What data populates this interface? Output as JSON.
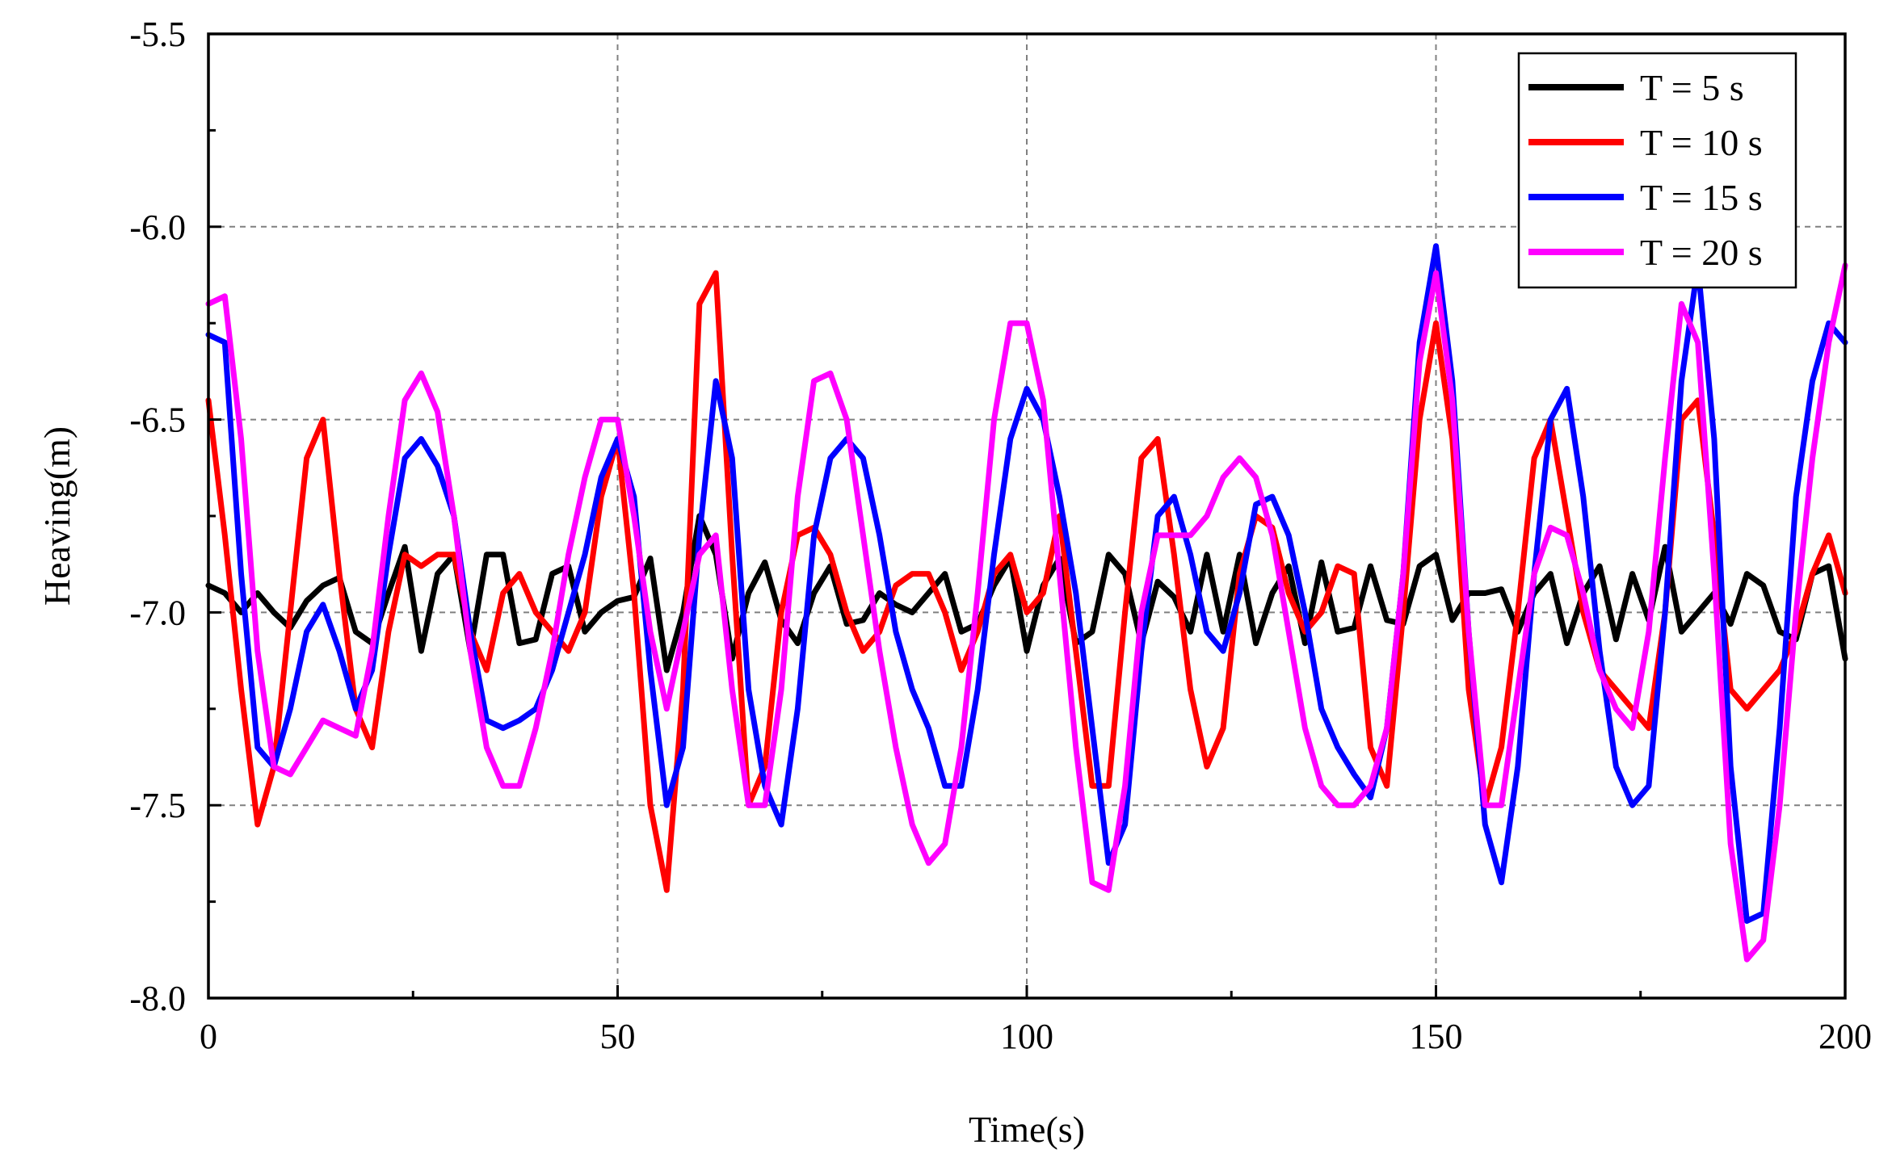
{
  "chart_data": {
    "type": "line",
    "title": "",
    "xlabel": "Time(s)",
    "ylabel": "Heaving(m)",
    "xlim": [
      0,
      200
    ],
    "ylim": [
      -8.0,
      -5.5
    ],
    "xticks": [
      0,
      50,
      100,
      150,
      200
    ],
    "xtick_labels": [
      "0",
      "50",
      "100",
      "150",
      "200"
    ],
    "yticks": [
      -8.0,
      -7.5,
      -7.0,
      -6.5,
      -6.0,
      -5.5
    ],
    "ytick_labels": [
      "-8.0",
      "-7.5",
      "-7.0",
      "-6.5",
      "-6.0",
      "-5.5"
    ],
    "grid": true,
    "legend_position": "top-right",
    "series": [
      {
        "name": "T = 5 s",
        "color": "#000000",
        "x": [
          0,
          2,
          4,
          6,
          8,
          10,
          12,
          14,
          16,
          18,
          20,
          22,
          24,
          26,
          28,
          30,
          32,
          34,
          36,
          38,
          40,
          42,
          44,
          46,
          48,
          50,
          52,
          54,
          56,
          58,
          60,
          62,
          64,
          66,
          68,
          70,
          72,
          74,
          76,
          78,
          80,
          82,
          84,
          86,
          88,
          90,
          92,
          94,
          96,
          98,
          100,
          102,
          104,
          106,
          108,
          110,
          112,
          114,
          116,
          118,
          120,
          122,
          124,
          126,
          128,
          130,
          132,
          134,
          136,
          138,
          140,
          142,
          144,
          146,
          148,
          150,
          152,
          154,
          156,
          158,
          160,
          162,
          164,
          166,
          168,
          170,
          172,
          174,
          176,
          178,
          180,
          182,
          184,
          186,
          188,
          190,
          192,
          194,
          196,
          198,
          200
        ],
        "y": [
          -6.93,
          -6.95,
          -7.0,
          -6.95,
          -7.0,
          -7.04,
          -6.97,
          -6.93,
          -6.91,
          -7.05,
          -7.08,
          -6.95,
          -6.83,
          -7.1,
          -6.9,
          -6.85,
          -7.1,
          -6.85,
          -6.85,
          -7.08,
          -7.07,
          -6.9,
          -6.88,
          -7.05,
          -7.0,
          -6.97,
          -6.96,
          -6.86,
          -7.15,
          -7.0,
          -6.75,
          -6.85,
          -7.12,
          -6.95,
          -6.87,
          -7.02,
          -7.08,
          -6.95,
          -6.88,
          -7.03,
          -7.02,
          -6.95,
          -6.98,
          -7.0,
          -6.95,
          -6.9,
          -7.05,
          -7.03,
          -6.93,
          -6.86,
          -7.1,
          -6.93,
          -6.86,
          -7.08,
          -7.05,
          -6.85,
          -6.9,
          -7.08,
          -6.92,
          -6.96,
          -7.05,
          -6.85,
          -7.05,
          -6.85,
          -7.08,
          -6.95,
          -6.88,
          -7.08,
          -6.87,
          -7.05,
          -7.04,
          -6.88,
          -7.02,
          -7.03,
          -6.88,
          -6.85,
          -7.02,
          -6.95,
          -6.95,
          -6.94,
          -7.05,
          -6.95,
          -6.9,
          -7.08,
          -6.95,
          -6.88,
          -7.07,
          -6.9,
          -7.02,
          -6.83,
          -7.05,
          -7.0,
          -6.95,
          -7.03,
          -6.9,
          -6.93,
          -7.05,
          -7.07,
          -6.9,
          -6.88,
          -7.12
        ]
      },
      {
        "name": "T = 10 s",
        "color": "#ff0000",
        "x": [
          0,
          2,
          4,
          6,
          8,
          10,
          12,
          14,
          16,
          18,
          20,
          22,
          24,
          26,
          28,
          30,
          32,
          34,
          36,
          38,
          40,
          42,
          44,
          46,
          48,
          50,
          52,
          54,
          56,
          58,
          60,
          62,
          64,
          66,
          68,
          70,
          72,
          74,
          76,
          78,
          80,
          82,
          84,
          86,
          88,
          90,
          92,
          94,
          96,
          98,
          100,
          102,
          104,
          106,
          108,
          110,
          112,
          114,
          116,
          118,
          120,
          122,
          124,
          126,
          128,
          130,
          132,
          134,
          136,
          138,
          140,
          142,
          144,
          146,
          148,
          150,
          152,
          154,
          156,
          158,
          160,
          162,
          164,
          166,
          168,
          170,
          172,
          174,
          176,
          178,
          180,
          182,
          184,
          186,
          188,
          190,
          192,
          194,
          196,
          198,
          200
        ],
        "y": [
          -6.45,
          -6.8,
          -7.2,
          -7.55,
          -7.4,
          -7.0,
          -6.6,
          -6.5,
          -6.9,
          -7.25,
          -7.35,
          -7.05,
          -6.85,
          -6.88,
          -6.85,
          -6.85,
          -7.05,
          -7.15,
          -6.95,
          -6.9,
          -7.0,
          -7.05,
          -7.1,
          -7.0,
          -6.7,
          -6.55,
          -6.95,
          -7.5,
          -7.72,
          -7.2,
          -6.2,
          -6.12,
          -6.85,
          -7.5,
          -7.4,
          -7.0,
          -6.8,
          -6.78,
          -6.85,
          -7.0,
          -7.1,
          -7.05,
          -6.93,
          -6.9,
          -6.9,
          -7.0,
          -7.15,
          -7.05,
          -6.9,
          -6.85,
          -7.0,
          -6.95,
          -6.75,
          -7.1,
          -7.45,
          -7.45,
          -7.0,
          -6.6,
          -6.55,
          -6.85,
          -7.2,
          -7.4,
          -7.3,
          -6.9,
          -6.75,
          -6.78,
          -6.95,
          -7.05,
          -7.0,
          -6.88,
          -6.9,
          -7.35,
          -7.45,
          -7.0,
          -6.5,
          -6.25,
          -6.55,
          -7.2,
          -7.5,
          -7.35,
          -7.0,
          -6.6,
          -6.5,
          -6.75,
          -7.0,
          -7.15,
          -7.2,
          -7.25,
          -7.3,
          -7.0,
          -6.5,
          -6.45,
          -6.8,
          -7.2,
          -7.25,
          -7.2,
          -7.15,
          -7.05,
          -6.9,
          -6.8,
          -6.95
        ]
      },
      {
        "name": "T = 15 s",
        "color": "#0000ff",
        "x": [
          0,
          2,
          4,
          6,
          8,
          10,
          12,
          14,
          16,
          18,
          20,
          22,
          24,
          26,
          28,
          30,
          32,
          34,
          36,
          38,
          40,
          42,
          44,
          46,
          48,
          50,
          52,
          54,
          56,
          58,
          60,
          62,
          64,
          66,
          68,
          70,
          72,
          74,
          76,
          78,
          80,
          82,
          84,
          86,
          88,
          90,
          92,
          94,
          96,
          98,
          100,
          102,
          104,
          106,
          108,
          110,
          112,
          114,
          116,
          118,
          120,
          122,
          124,
          126,
          128,
          130,
          132,
          134,
          136,
          138,
          140,
          142,
          144,
          146,
          148,
          150,
          152,
          154,
          156,
          158,
          160,
          162,
          164,
          166,
          168,
          170,
          172,
          174,
          176,
          178,
          180,
          182,
          184,
          186,
          188,
          190,
          192,
          194,
          196,
          198,
          200
        ],
        "y": [
          -6.28,
          -6.3,
          -6.9,
          -7.35,
          -7.4,
          -7.25,
          -7.05,
          -6.98,
          -7.1,
          -7.25,
          -7.15,
          -6.85,
          -6.6,
          -6.55,
          -6.62,
          -6.75,
          -7.05,
          -7.28,
          -7.3,
          -7.28,
          -7.25,
          -7.15,
          -7.0,
          -6.85,
          -6.65,
          -6.55,
          -6.7,
          -7.15,
          -7.5,
          -7.35,
          -6.8,
          -6.4,
          -6.6,
          -7.2,
          -7.45,
          -7.55,
          -7.25,
          -6.8,
          -6.6,
          -6.55,
          -6.6,
          -6.8,
          -7.05,
          -7.2,
          -7.3,
          -7.45,
          -7.45,
          -7.2,
          -6.85,
          -6.55,
          -6.42,
          -6.5,
          -6.7,
          -6.95,
          -7.3,
          -7.65,
          -7.55,
          -7.1,
          -6.75,
          -6.7,
          -6.85,
          -7.05,
          -7.1,
          -6.95,
          -6.72,
          -6.7,
          -6.8,
          -7.0,
          -7.25,
          -7.35,
          -7.42,
          -7.48,
          -7.3,
          -6.9,
          -6.3,
          -6.05,
          -6.4,
          -7.05,
          -7.55,
          -7.7,
          -7.4,
          -6.9,
          -6.5,
          -6.42,
          -6.7,
          -7.1,
          -7.4,
          -7.5,
          -7.45,
          -7.0,
          -6.4,
          -6.1,
          -6.55,
          -7.4,
          -7.8,
          -7.78,
          -7.3,
          -6.7,
          -6.4,
          -6.25,
          -6.3
        ]
      },
      {
        "name": "T = 20 s",
        "color": "#ff00ff",
        "x": [
          0,
          2,
          4,
          6,
          8,
          10,
          12,
          14,
          16,
          18,
          20,
          22,
          24,
          26,
          28,
          30,
          32,
          34,
          36,
          38,
          40,
          42,
          44,
          46,
          48,
          50,
          52,
          54,
          56,
          58,
          60,
          62,
          64,
          66,
          68,
          70,
          72,
          74,
          76,
          78,
          80,
          82,
          84,
          86,
          88,
          90,
          92,
          94,
          96,
          98,
          100,
          102,
          104,
          106,
          108,
          110,
          112,
          114,
          116,
          118,
          120,
          122,
          124,
          126,
          128,
          130,
          132,
          134,
          136,
          138,
          140,
          142,
          144,
          146,
          148,
          150,
          152,
          154,
          156,
          158,
          160,
          162,
          164,
          166,
          168,
          170,
          172,
          174,
          176,
          178,
          180,
          182,
          184,
          186,
          188,
          190,
          192,
          194,
          196,
          198,
          200
        ],
        "y": [
          -6.2,
          -6.18,
          -6.55,
          -7.1,
          -7.4,
          -7.42,
          -7.35,
          -7.28,
          -7.3,
          -7.32,
          -7.1,
          -6.75,
          -6.45,
          -6.38,
          -6.48,
          -6.75,
          -7.1,
          -7.35,
          -7.45,
          -7.45,
          -7.3,
          -7.1,
          -6.85,
          -6.65,
          -6.5,
          -6.5,
          -6.75,
          -7.05,
          -7.25,
          -7.05,
          -6.85,
          -6.8,
          -7.2,
          -7.5,
          -7.5,
          -7.2,
          -6.7,
          -6.4,
          -6.38,
          -6.5,
          -6.8,
          -7.1,
          -7.35,
          -7.55,
          -7.65,
          -7.6,
          -7.35,
          -6.95,
          -6.5,
          -6.25,
          -6.25,
          -6.45,
          -6.9,
          -7.35,
          -7.7,
          -7.72,
          -7.45,
          -7.0,
          -6.8,
          -6.8,
          -6.8,
          -6.75,
          -6.65,
          -6.6,
          -6.65,
          -6.8,
          -7.05,
          -7.3,
          -7.45,
          -7.5,
          -7.5,
          -7.45,
          -7.3,
          -6.9,
          -6.35,
          -6.12,
          -6.45,
          -7.05,
          -7.5,
          -7.5,
          -7.2,
          -6.9,
          -6.78,
          -6.8,
          -6.95,
          -7.15,
          -7.25,
          -7.3,
          -7.05,
          -6.6,
          -6.2,
          -6.3,
          -6.9,
          -7.6,
          -7.9,
          -7.85,
          -7.5,
          -7.0,
          -6.6,
          -6.3,
          -6.1
        ]
      }
    ]
  }
}
